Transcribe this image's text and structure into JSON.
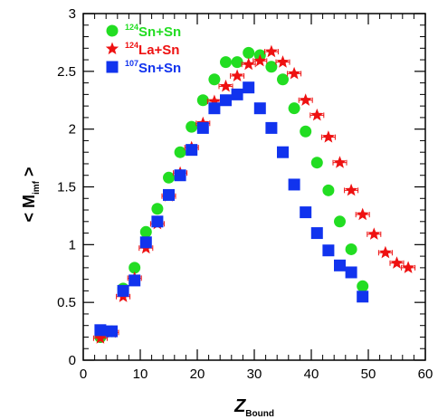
{
  "chart_data": {
    "type": "scatter",
    "xlabel": {
      "main": "Z",
      "sub": "Bound"
    },
    "ylabel": {
      "pre": "< M",
      "sub": "imf",
      "post": " >"
    },
    "xlim": [
      0,
      60
    ],
    "ylim": [
      0,
      3
    ],
    "x_ticks": [
      0,
      10,
      20,
      30,
      40,
      50,
      60
    ],
    "y_ticks": [
      0,
      0.5,
      1,
      1.5,
      2,
      2.5,
      3
    ],
    "x_tick_labels": [
      "0",
      "10",
      "20",
      "30",
      "40",
      "50",
      "60"
    ],
    "y_tick_labels": [
      "0",
      "0.5",
      "1",
      "1.5",
      "2",
      "2.5",
      "3"
    ],
    "legend_position": "top-left",
    "grid": false,
    "series": [
      {
        "name": "124Sn+Sn",
        "label": {
          "sup": "124",
          "text": "Sn+Sn"
        },
        "color": "#22dd22",
        "marker": "circle",
        "x": [
          3,
          5,
          7,
          9,
          11,
          13,
          15,
          17,
          19,
          21,
          23,
          25,
          27,
          29,
          31,
          33,
          35,
          37,
          39,
          41,
          43,
          45,
          47,
          49
        ],
        "y": [
          0.2,
          0.25,
          0.62,
          0.8,
          1.11,
          1.31,
          1.58,
          1.8,
          2.02,
          2.25,
          2.43,
          2.58,
          2.58,
          2.66,
          2.64,
          2.54,
          2.43,
          2.18,
          1.98,
          1.71,
          1.47,
          1.2,
          0.96,
          0.64
        ]
      },
      {
        "name": "124La+Sn",
        "label": {
          "sup": "124",
          "text": "La+Sn"
        },
        "color": "#ee1111",
        "marker": "star",
        "x": [
          3,
          5,
          7,
          9,
          11,
          13,
          15,
          17,
          19,
          21,
          23,
          25,
          27,
          29,
          31,
          33,
          35,
          37,
          39,
          41,
          43,
          45,
          47,
          49,
          51,
          53,
          55,
          57
        ],
        "y": [
          0.19,
          0.24,
          0.55,
          0.71,
          0.97,
          1.18,
          1.42,
          1.62,
          1.84,
          2.05,
          2.24,
          2.37,
          2.46,
          2.56,
          2.59,
          2.67,
          2.58,
          2.48,
          2.25,
          2.12,
          1.93,
          1.71,
          1.47,
          1.26,
          1.09,
          0.93,
          0.84,
          0.8
        ]
      },
      {
        "name": "107Sn+Sn",
        "label": {
          "sup": "107",
          "text": "Sn+Sn"
        },
        "color": "#1133ee",
        "marker": "square",
        "x": [
          3,
          5,
          7,
          9,
          11,
          13,
          15,
          17,
          19,
          21,
          23,
          25,
          27,
          29,
          31,
          33,
          35,
          37,
          39,
          41,
          43,
          45,
          47,
          49
        ],
        "y": [
          0.26,
          0.25,
          0.6,
          0.69,
          1.02,
          1.2,
          1.43,
          1.6,
          1.82,
          2.01,
          2.18,
          2.25,
          2.3,
          2.36,
          2.18,
          2.01,
          1.8,
          1.52,
          1.28,
          1.1,
          0.95,
          0.82,
          0.76,
          0.55
        ]
      }
    ]
  }
}
